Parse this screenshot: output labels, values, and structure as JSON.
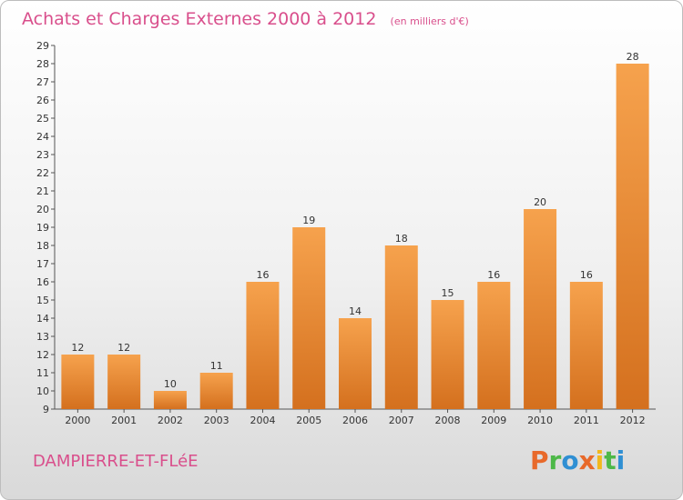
{
  "chart_data": {
    "type": "bar",
    "title": "Achats et Charges Externes 2000 à 2012",
    "subtitle": "(en milliers d'€)",
    "categories": [
      "2000",
      "2001",
      "2002",
      "2003",
      "2004",
      "2005",
      "2006",
      "2007",
      "2008",
      "2009",
      "2010",
      "2011",
      "2012"
    ],
    "values": [
      12,
      12,
      10,
      11,
      16,
      19,
      14,
      18,
      15,
      16,
      20,
      16,
      28
    ],
    "ylim": [
      9,
      29
    ],
    "yticks": [
      9,
      10,
      11,
      12,
      13,
      14,
      15,
      16,
      17,
      18,
      19,
      20,
      21,
      22,
      23,
      24,
      25,
      26,
      27,
      28,
      29
    ],
    "grid": false,
    "bar_color_top": "#f6a24d",
    "bar_color_bottom": "#d4701e"
  },
  "footer": {
    "city": "DAMPIERRE-ET-FLéE",
    "logo": "Proxiti",
    "logo_colors": [
      "#e8692a",
      "#4db848",
      "#2f8fd3",
      "#e8692a",
      "#f2b81d",
      "#4db848",
      "#2f8fd3"
    ]
  }
}
